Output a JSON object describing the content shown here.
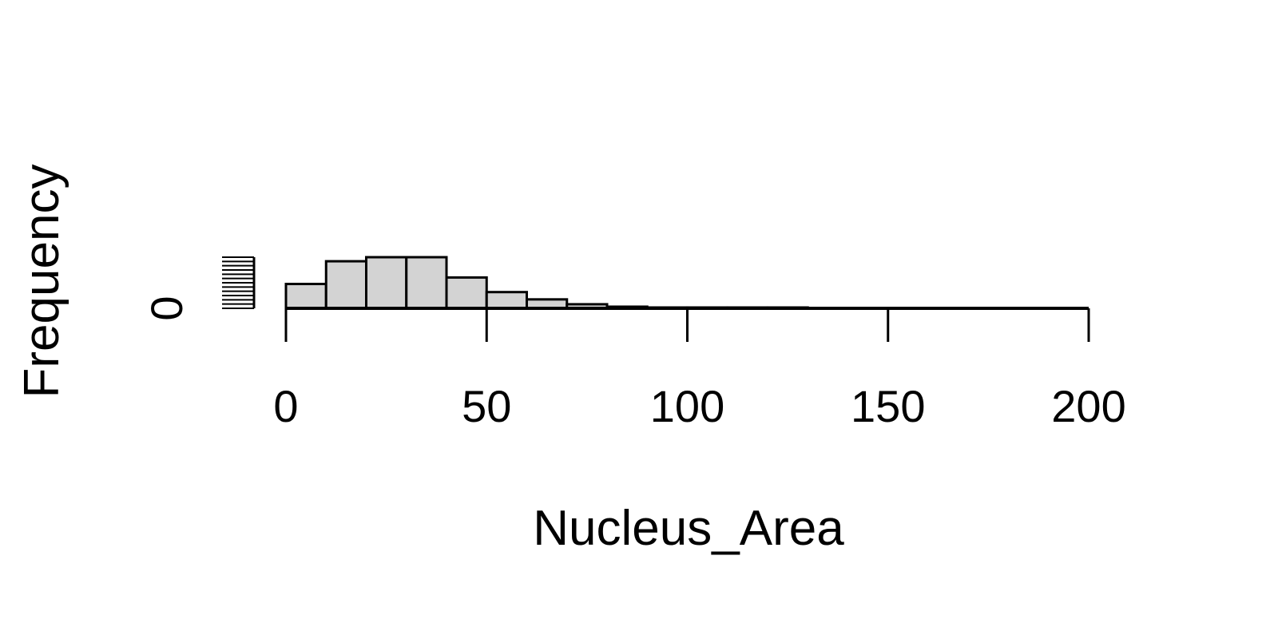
{
  "chart_data": {
    "type": "histogram",
    "title": "",
    "xlabel": "Nucleus_Area",
    "ylabel": "Frequency",
    "xlim": [
      0,
      200
    ],
    "bin_width": 10,
    "bin_edges": [
      0,
      10,
      20,
      30,
      40,
      50,
      60,
      70,
      80,
      90,
      100,
      110,
      120,
      130,
      140,
      150,
      160,
      170,
      180,
      190,
      200
    ],
    "counts": [
      30,
      58,
      63,
      63,
      38,
      20,
      11,
      5,
      2,
      1,
      1,
      1,
      1,
      0,
      0,
      0,
      0,
      0,
      0,
      0
    ],
    "ylim": [
      0,
      63
    ],
    "x_ticks": [
      0,
      50,
      100,
      150,
      200
    ],
    "x_tick_labels": [
      "0",
      "50",
      "100",
      "150",
      "200"
    ],
    "y_tick_labels": [
      "0"
    ],
    "bar_fill": "#d3d3d3",
    "bar_stroke": "#000000"
  }
}
